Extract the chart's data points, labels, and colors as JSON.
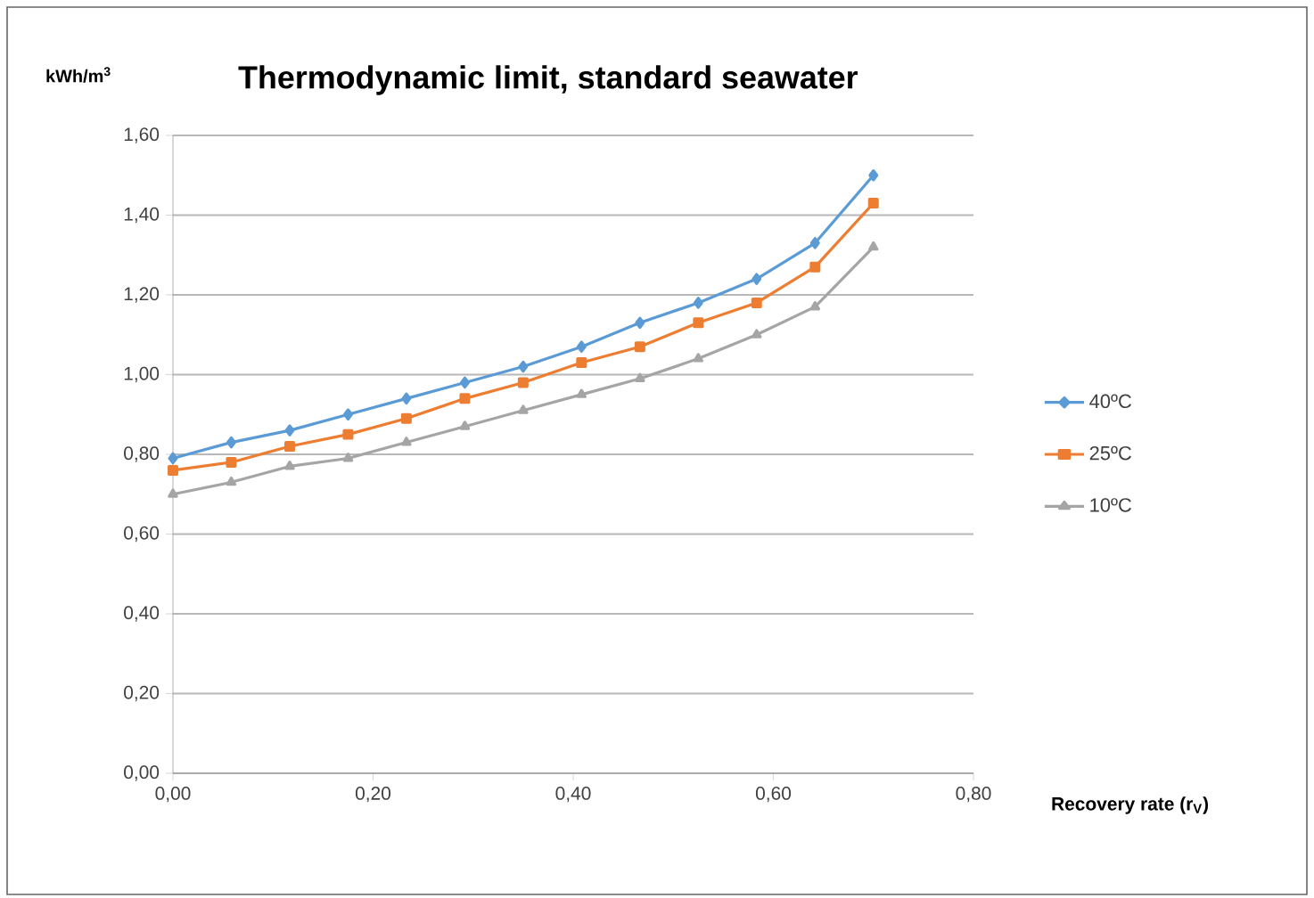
{
  "chart_data": {
    "type": "line",
    "title": "Thermodynamic limit, standard seawater",
    "ylabel": "kWh/m$^{3}$",
    "xlabel": "Recovery rate (r$_{V}$)",
    "x": [
      0,
      0.0583,
      0.1167,
      0.175,
      0.2333,
      0.2917,
      0.35,
      0.4083,
      0.4667,
      0.525,
      0.5833,
      0.6417,
      0.7
    ],
    "series": [
      {
        "name": "40ºC",
        "color": "#5b9bd5",
        "marker": "diamond",
        "values": [
          0.79,
          0.83,
          0.86,
          0.9,
          0.94,
          0.98,
          1.02,
          1.07,
          1.13,
          1.18,
          1.24,
          1.33,
          1.5
        ]
      },
      {
        "name": "25ºC",
        "color": "#ed7d31",
        "marker": "square",
        "values": [
          0.76,
          0.78,
          0.82,
          0.85,
          0.89,
          0.94,
          0.98,
          1.03,
          1.07,
          1.13,
          1.18,
          1.27,
          1.43
        ]
      },
      {
        "name": "10ºC",
        "color": "#a5a5a5",
        "marker": "triangle",
        "values": [
          0.7,
          0.73,
          0.77,
          0.79,
          0.83,
          0.87,
          0.91,
          0.95,
          0.99,
          1.04,
          1.1,
          1.17,
          1.32
        ]
      }
    ],
    "xlim": [
      0,
      0.8
    ],
    "ylim": [
      0,
      1.6
    ],
    "xticks": [
      {
        "value": 0,
        "label": "0,00"
      },
      {
        "value": 0.2,
        "label": "0,20"
      },
      {
        "value": 0.4,
        "label": "0,40"
      },
      {
        "value": 0.6,
        "label": "0,60"
      },
      {
        "value": 0.8,
        "label": "0,80"
      }
    ],
    "yticks": [
      {
        "value": 0,
        "label": "0,00"
      },
      {
        "value": 0.2,
        "label": "0,20"
      },
      {
        "value": 0.4,
        "label": "0,40"
      },
      {
        "value": 0.6,
        "label": "0,60"
      },
      {
        "value": 0.8,
        "label": "0,80"
      },
      {
        "value": 1.0,
        "label": "1,00"
      },
      {
        "value": 1.2,
        "label": "1,20"
      },
      {
        "value": 1.4,
        "label": "1,40"
      },
      {
        "value": 1.6,
        "label": "1,60"
      }
    ],
    "grid": "y",
    "legend": "right",
    "line_style": "solid"
  }
}
